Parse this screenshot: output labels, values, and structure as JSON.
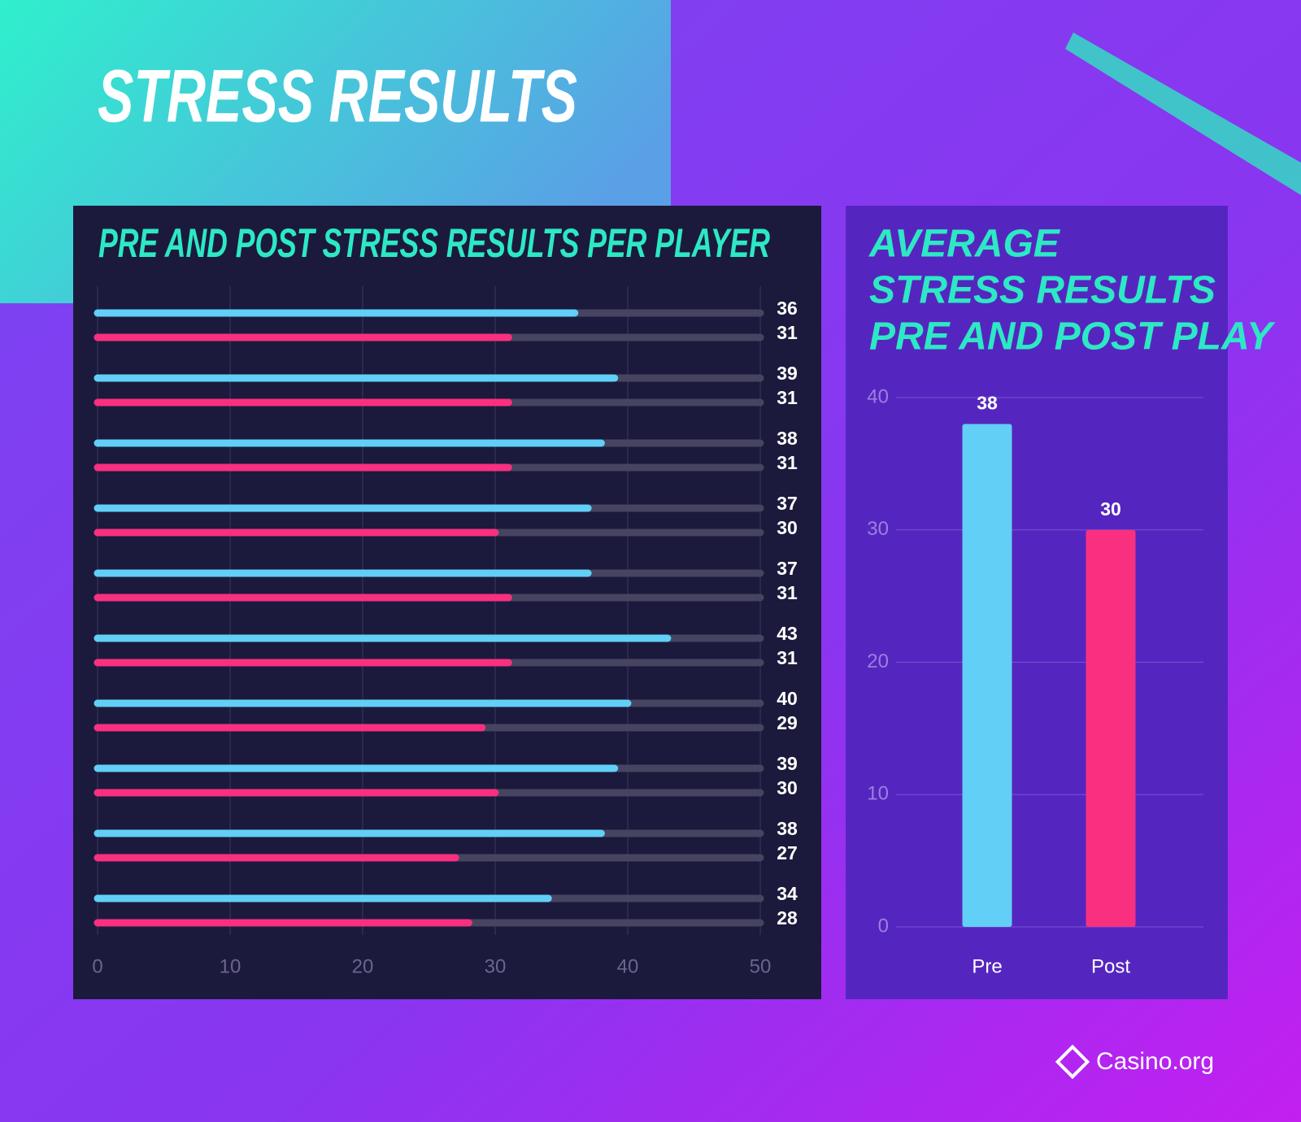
{
  "title": "STRESS RESULTS",
  "brand": "Casino.org",
  "chart_data": [
    {
      "type": "hbar",
      "title": "PRE AND POST STRESS RESULTS PER PLAYER",
      "series": [
        {
          "color": "#62cff6",
          "values": [
            36,
            39,
            38,
            37,
            37,
            43,
            40,
            39,
            38,
            34
          ]
        },
        {
          "color": "#f8307f",
          "values": [
            31,
            31,
            31,
            30,
            31,
            31,
            29,
            30,
            27,
            28
          ]
        }
      ],
      "xlim": [
        0,
        50
      ],
      "xticks": [
        0,
        10,
        20,
        30,
        40,
        50
      ],
      "grid": true
    },
    {
      "type": "bar",
      "title": [
        "AVERAGE",
        "STRESS RESULTS",
        "PRE AND POST PLAY"
      ],
      "categories": [
        "Pre",
        "Post"
      ],
      "values": [
        38,
        30
      ],
      "colors": [
        "#62cff6",
        "#f8307f"
      ],
      "ylim": [
        0,
        40
      ],
      "yticks": [
        0,
        10,
        20,
        30,
        40
      ],
      "grid": true
    }
  ]
}
